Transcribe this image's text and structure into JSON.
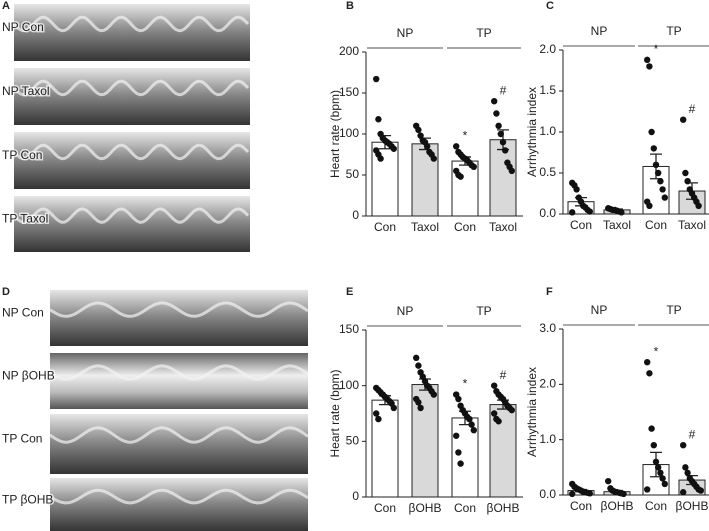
{
  "image_panels": [
    {
      "letter": "A",
      "rows": [
        "NP Con",
        "NP Taxol",
        "TP Con",
        "TP Taxol"
      ]
    },
    {
      "letter": "D",
      "rows": [
        "NP Con",
        "NP βOHB",
        "TP Con",
        "TP βOHB"
      ]
    }
  ],
  "chart_data": [
    {
      "type": "bar",
      "letter": "B",
      "ylabel": "Heart rate (bpm)",
      "categories": [
        "Con",
        "Taxol",
        "Con",
        "Taxol"
      ],
      "colors": [
        "#ffffff",
        "#d9d9d9",
        "#ffffff",
        "#d9d9d9"
      ],
      "values": [
        90,
        88,
        67,
        93
      ],
      "errors": [
        8,
        7,
        5,
        12
      ],
      "points": [
        [
          167,
          118,
          100,
          95,
          92,
          90,
          88,
          85,
          82,
          80,
          75,
          70
        ],
        [
          110,
          105,
          98,
          92,
          90,
          85,
          78,
          75,
          70
        ],
        [
          85,
          78,
          75,
          72,
          70,
          68,
          65,
          62,
          60,
          55,
          50,
          48
        ],
        [
          140,
          125,
          110,
          100,
          90,
          80,
          65,
          60,
          55
        ]
      ],
      "groups": [
        {
          "label": "NP",
          "from": 0,
          "to": 1
        },
        {
          "label": "TP",
          "from": 2,
          "to": 3
        }
      ],
      "annotations": [
        {
          "text": "*",
          "index": 2
        },
        {
          "text": "#",
          "index": 3
        }
      ],
      "ylim": [
        0,
        200
      ],
      "yticks": [
        0,
        50,
        100,
        150,
        200
      ]
    },
    {
      "type": "bar",
      "letter": "C",
      "ylabel": "Arrhythmia index",
      "categories": [
        "Con",
        "Taxol",
        "Con",
        "Taxol"
      ],
      "colors": [
        "#ffffff",
        "#d9d9d9",
        "#ffffff",
        "#d9d9d9"
      ],
      "values": [
        0.15,
        0.05,
        0.58,
        0.28
      ],
      "errors": [
        0.05,
        0.01,
        0.15,
        0.1
      ],
      "points": [
        [
          0.38,
          0.35,
          0.3,
          0.2,
          0.15,
          0.1,
          0.08,
          0.05,
          0.03,
          0.02
        ],
        [
          0.07,
          0.06,
          0.05,
          0.05,
          0.04,
          0.03,
          0.02
        ],
        [
          1.88,
          1.8,
          1.0,
          0.8,
          0.6,
          0.5,
          0.4,
          0.3,
          0.2,
          0.15,
          0.1
        ],
        [
          1.15,
          0.5,
          0.4,
          0.3,
          0.25,
          0.2,
          0.15,
          0.1
        ]
      ],
      "groups": [
        {
          "label": "NP",
          "from": 0,
          "to": 1
        },
        {
          "label": "TP",
          "from": 2,
          "to": 3
        }
      ],
      "annotations": [
        {
          "text": "*",
          "index": 2
        },
        {
          "text": "#",
          "index": 3
        }
      ],
      "ylim": [
        0,
        2
      ],
      "yticks": [
        {
          "value": 0,
          "label": "0.0"
        },
        {
          "value": 0.5,
          "label": "0.5"
        },
        {
          "value": 1,
          "label": "1.0"
        },
        {
          "value": 1.5,
          "label": "1.5"
        },
        {
          "value": 2,
          "label": "2.0"
        }
      ]
    },
    {
      "type": "bar",
      "letter": "E",
      "ylabel": "Heart rate (bpm)",
      "categories": [
        "Con",
        "βOHB",
        "Con",
        "βOHB"
      ],
      "colors": [
        "#ffffff",
        "#d9d9d9",
        "#ffffff",
        "#d9d9d9"
      ],
      "values": [
        87,
        101,
        71,
        83
      ],
      "errors": [
        4,
        5,
        6,
        4
      ],
      "points": [
        [
          98,
          96,
          94,
          92,
          90,
          88,
          86,
          84,
          80,
          75,
          70
        ],
        [
          125,
          118,
          112,
          108,
          104,
          100,
          98,
          95,
          92,
          88,
          85,
          80
        ],
        [
          92,
          88,
          82,
          78,
          75,
          72,
          70,
          65,
          60,
          55,
          40,
          30
        ],
        [
          100,
          95,
          92,
          90,
          88,
          85,
          82,
          80,
          78,
          75,
          70,
          68
        ]
      ],
      "groups": [
        {
          "label": "NP",
          "from": 0,
          "to": 1
        },
        {
          "label": "TP",
          "from": 2,
          "to": 3
        }
      ],
      "annotations": [
        {
          "text": "*",
          "index": 2
        },
        {
          "text": "#",
          "index": 3
        }
      ],
      "ylim": [
        0,
        150
      ],
      "yticks": [
        0,
        50,
        100,
        150
      ]
    },
    {
      "type": "bar",
      "letter": "F",
      "ylabel": "Arrhythmia index",
      "categories": [
        "Con",
        "βOHB",
        "Con",
        "βOHB"
      ],
      "colors": [
        "#ffffff",
        "#d9d9d9",
        "#ffffff",
        "#d9d9d9"
      ],
      "values": [
        0.08,
        0.06,
        0.55,
        0.27
      ],
      "errors": [
        0.02,
        0.02,
        0.22,
        0.08
      ],
      "points": [
        [
          0.2,
          0.15,
          0.12,
          0.1,
          0.08,
          0.06,
          0.05,
          0.04,
          0.03,
          0.02
        ],
        [
          0.25,
          0.12,
          0.08,
          0.06,
          0.05,
          0.04,
          0.03,
          0.02
        ],
        [
          2.4,
          2.2,
          1.2,
          0.9,
          0.6,
          0.5,
          0.4,
          0.3,
          0.2,
          0.1
        ],
        [
          0.9,
          0.5,
          0.4,
          0.3,
          0.25,
          0.2,
          0.15,
          0.1,
          0.08,
          0.05
        ]
      ],
      "groups": [
        {
          "label": "NP",
          "from": 0,
          "to": 1
        },
        {
          "label": "TP",
          "from": 2,
          "to": 3
        }
      ],
      "annotations": [
        {
          "text": "*",
          "index": 2
        },
        {
          "text": "#",
          "index": 3
        }
      ],
      "ylim": [
        0,
        3
      ],
      "yticks": [
        {
          "value": 0,
          "label": "0.0"
        },
        {
          "value": 1,
          "label": "1.0"
        },
        {
          "value": 2,
          "label": "2.0"
        },
        {
          "value": 3,
          "label": "3.0"
        }
      ]
    }
  ]
}
